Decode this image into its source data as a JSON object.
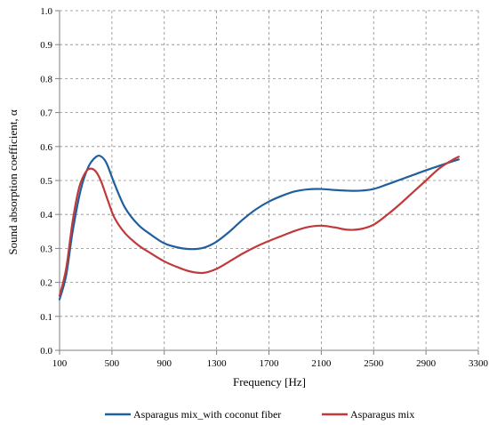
{
  "chart_data": {
    "type": "line",
    "title": "",
    "xlabel": "Frequency [Hz]",
    "ylabel": "Sound absorption coefficient, α",
    "xlim": [
      100,
      3300
    ],
    "ylim": [
      0.0,
      1.0
    ],
    "xticks": [
      100,
      500,
      900,
      1300,
      1700,
      2100,
      2500,
      2900,
      3300
    ],
    "xtick_labels": [
      "100",
      "500",
      "900",
      "1300",
      "1700",
      "2100",
      "2500",
      "2900",
      "3300"
    ],
    "yticks": [
      0.0,
      0.1,
      0.2,
      0.3,
      0.4,
      0.5,
      0.6,
      0.7,
      0.8,
      0.9,
      1.0
    ],
    "ytick_labels": [
      "0.0",
      "0.1",
      "0.2",
      "0.3",
      "0.4",
      "0.5",
      "0.6",
      "0.7",
      "0.8",
      "0.9",
      "1.0"
    ],
    "grid": true,
    "legend_position": "bottom",
    "series": [
      {
        "name": "Asparagus mix_with coconut fiber",
        "color": "#1f5f9e",
        "x": [
          100,
          150,
          200,
          260,
          320,
          380,
          420,
          460,
          520,
          600,
          700,
          800,
          900,
          1000,
          1100,
          1200,
          1300,
          1400,
          1500,
          1600,
          1700,
          1800,
          1900,
          2000,
          2100,
          2200,
          2300,
          2400,
          2500,
          2600,
          2700,
          2800,
          2900,
          3000,
          3100,
          3150
        ],
        "y": [
          0.15,
          0.22,
          0.35,
          0.47,
          0.54,
          0.57,
          0.57,
          0.55,
          0.49,
          0.42,
          0.37,
          0.34,
          0.315,
          0.303,
          0.298,
          0.302,
          0.32,
          0.35,
          0.385,
          0.415,
          0.438,
          0.455,
          0.468,
          0.474,
          0.475,
          0.472,
          0.47,
          0.47,
          0.475,
          0.488,
          0.502,
          0.516,
          0.53,
          0.543,
          0.556,
          0.562
        ]
      },
      {
        "name": "Asparagus mix",
        "color": "#c0393b",
        "x": [
          100,
          150,
          200,
          250,
          300,
          340,
          380,
          420,
          470,
          520,
          600,
          700,
          800,
          900,
          1000,
          1100,
          1200,
          1300,
          1400,
          1500,
          1600,
          1700,
          1800,
          1900,
          2000,
          2100,
          2200,
          2300,
          2400,
          2500,
          2600,
          2700,
          2800,
          2900,
          3000,
          3100,
          3150
        ],
        "y": [
          0.16,
          0.24,
          0.38,
          0.48,
          0.525,
          0.535,
          0.525,
          0.495,
          0.44,
          0.39,
          0.345,
          0.31,
          0.285,
          0.262,
          0.245,
          0.232,
          0.228,
          0.24,
          0.262,
          0.285,
          0.305,
          0.322,
          0.337,
          0.352,
          0.363,
          0.367,
          0.362,
          0.355,
          0.357,
          0.37,
          0.398,
          0.43,
          0.465,
          0.5,
          0.535,
          0.56,
          0.57
        ]
      }
    ]
  }
}
